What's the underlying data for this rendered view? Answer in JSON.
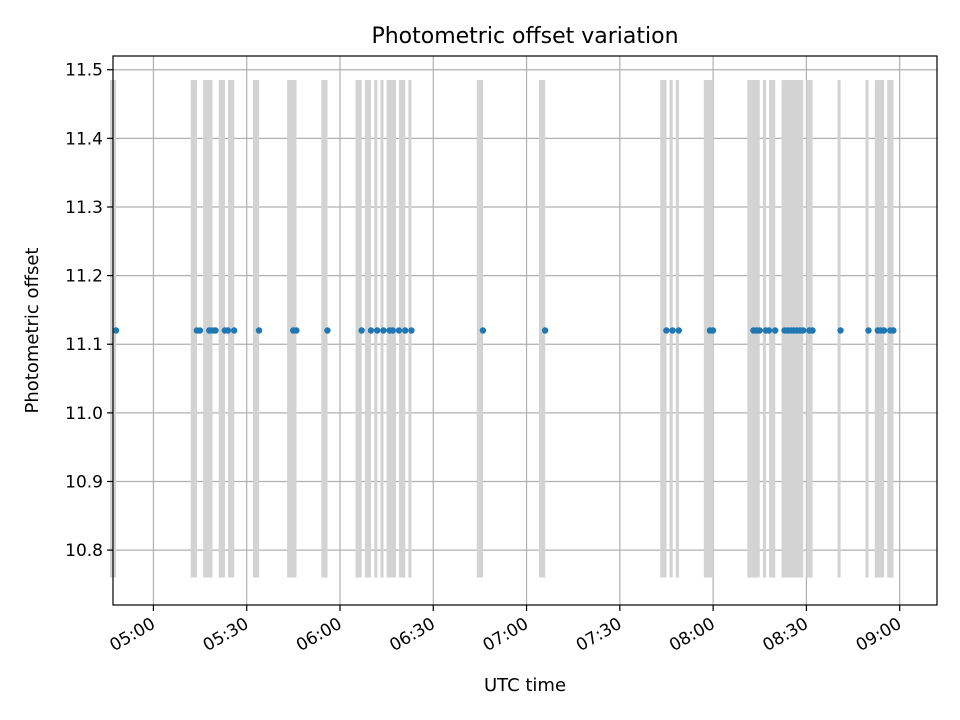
{
  "chart_data": {
    "type": "scatter",
    "title": "Photometric offset variation",
    "xlabel": "UTC time",
    "ylabel": "Photometric offset",
    "x_tick_labels": [
      "05:00",
      "05:30",
      "06:00",
      "06:30",
      "07:00",
      "07:30",
      "08:00",
      "08:30",
      "09:00"
    ],
    "y_tick_labels": [
      "10.8",
      "10.9",
      "11.0",
      "11.1",
      "11.2",
      "11.3",
      "11.4",
      "11.5"
    ],
    "y_ticks": [
      10.8,
      10.9,
      11.0,
      11.1,
      11.2,
      11.3,
      11.4,
      11.5
    ],
    "x_tick_times": [
      "05:00",
      "05:30",
      "06:00",
      "06:30",
      "07:00",
      "07:30",
      "08:00",
      "08:30",
      "09:00"
    ],
    "xlim": [
      "04:47",
      "09:12"
    ],
    "ylim": [
      10.72,
      11.52
    ],
    "grid": true,
    "series": [
      {
        "color": "#1f77b4",
        "marker": "circle",
        "y_value": 11.12,
        "x_times": [
          "04:47",
          "05:13",
          "05:14",
          "05:17",
          "05:18",
          "05:19",
          "05:22",
          "05:23",
          "05:25",
          "05:33",
          "05:44",
          "05:45",
          "05:55",
          "06:06",
          "06:09",
          "06:11",
          "06:13",
          "06:15",
          "06:16",
          "06:18",
          "06:20",
          "06:22",
          "06:45",
          "07:05",
          "07:44",
          "07:46",
          "07:48",
          "07:58",
          "07:59",
          "08:12",
          "08:13",
          "08:14",
          "08:16",
          "08:17",
          "08:19",
          "08:22",
          "08:23",
          "08:24",
          "08:25",
          "08:26",
          "08:27",
          "08:28",
          "08:30",
          "08:31",
          "08:40",
          "08:49",
          "08:52",
          "08:53",
          "08:54",
          "08:56",
          "08:57"
        ]
      }
    ],
    "shaded_bands": {
      "color": "#d3d3d3",
      "y_range": [
        10.76,
        11.485
      ],
      "intervals": [
        [
          "04:46",
          "04:48"
        ],
        [
          "05:12",
          "05:14"
        ],
        [
          "05:16",
          "05:19"
        ],
        [
          "05:21",
          "05:23"
        ],
        [
          "05:24",
          "05:26"
        ],
        [
          "05:32",
          "05:34"
        ],
        [
          "05:43",
          "05:46"
        ],
        [
          "05:54",
          "05:56"
        ],
        [
          "06:05",
          "06:07"
        ],
        [
          "06:08",
          "06:10"
        ],
        [
          "06:11",
          "06:12"
        ],
        [
          "06:13",
          "06:14"
        ],
        [
          "06:15",
          "06:18"
        ],
        [
          "06:19",
          "06:21"
        ],
        [
          "06:22",
          "06:23"
        ],
        [
          "06:44",
          "06:46"
        ],
        [
          "07:04",
          "07:06"
        ],
        [
          "07:43",
          "07:45"
        ],
        [
          "07:46",
          "07:47"
        ],
        [
          "07:48",
          "07:49"
        ],
        [
          "07:57",
          "08:00"
        ],
        [
          "08:11",
          "08:15"
        ],
        [
          "08:16",
          "08:17"
        ],
        [
          "08:18",
          "08:20"
        ],
        [
          "08:22",
          "08:29"
        ],
        [
          "08:30",
          "08:32"
        ],
        [
          "08:40",
          "08:41"
        ],
        [
          "08:49",
          "08:50"
        ],
        [
          "08:52",
          "08:55"
        ],
        [
          "08:56",
          "08:58"
        ]
      ]
    }
  }
}
